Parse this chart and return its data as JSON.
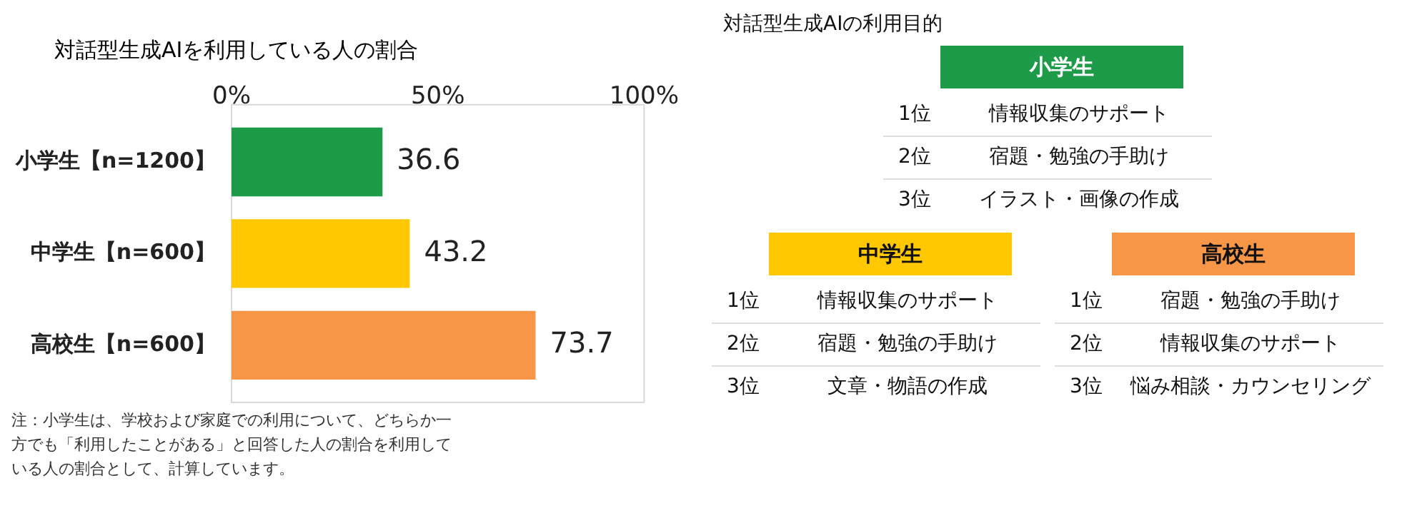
{
  "chart_data": [
    {
      "type": "bar",
      "title": "対話型生成AIを利用している人の割合",
      "orientation": "horizontal",
      "categories": [
        "小学生【n=1200】",
        "中学生【n=600】",
        "高校生【n=600】"
      ],
      "values": [
        36.6,
        43.2,
        73.7
      ],
      "colors": [
        "#1e9b48",
        "#ffc800",
        "#f79646"
      ],
      "xlim": [
        0,
        100
      ],
      "xticks": [
        {
          "value": 0,
          "label": "0%"
        },
        {
          "value": 50,
          "label": "50%"
        },
        {
          "value": 100,
          "label": "100%"
        }
      ],
      "data_labels": true,
      "annotations": [
        "注：小学生は、学校および家庭での利用について、どちらか一方でも「利用したことがある」と回答した人の割合を利用している人の割合として、計算しています。"
      ]
    },
    {
      "type": "other",
      "title": "対話型生成AIの利用目的",
      "categories": [
        "小学生",
        "中学生",
        "高校生"
      ],
      "colors": [
        "#1e9b48",
        "#ffc800",
        "#f79646"
      ],
      "y_categories": [
        "1位",
        "2位",
        "3位"
      ],
      "cell_labels": [
        [
          "情報収集のサポート",
          "情報収集のサポート",
          "宿題・勉強の手助け"
        ],
        [
          "宿題・勉強の手助け",
          "宿題・勉強の手助け",
          "情報収集のサポート"
        ],
        [
          "イラスト・画像の作成",
          "文章・物語の作成",
          "悩み相談・カウンセリング"
        ]
      ]
    }
  ]
}
